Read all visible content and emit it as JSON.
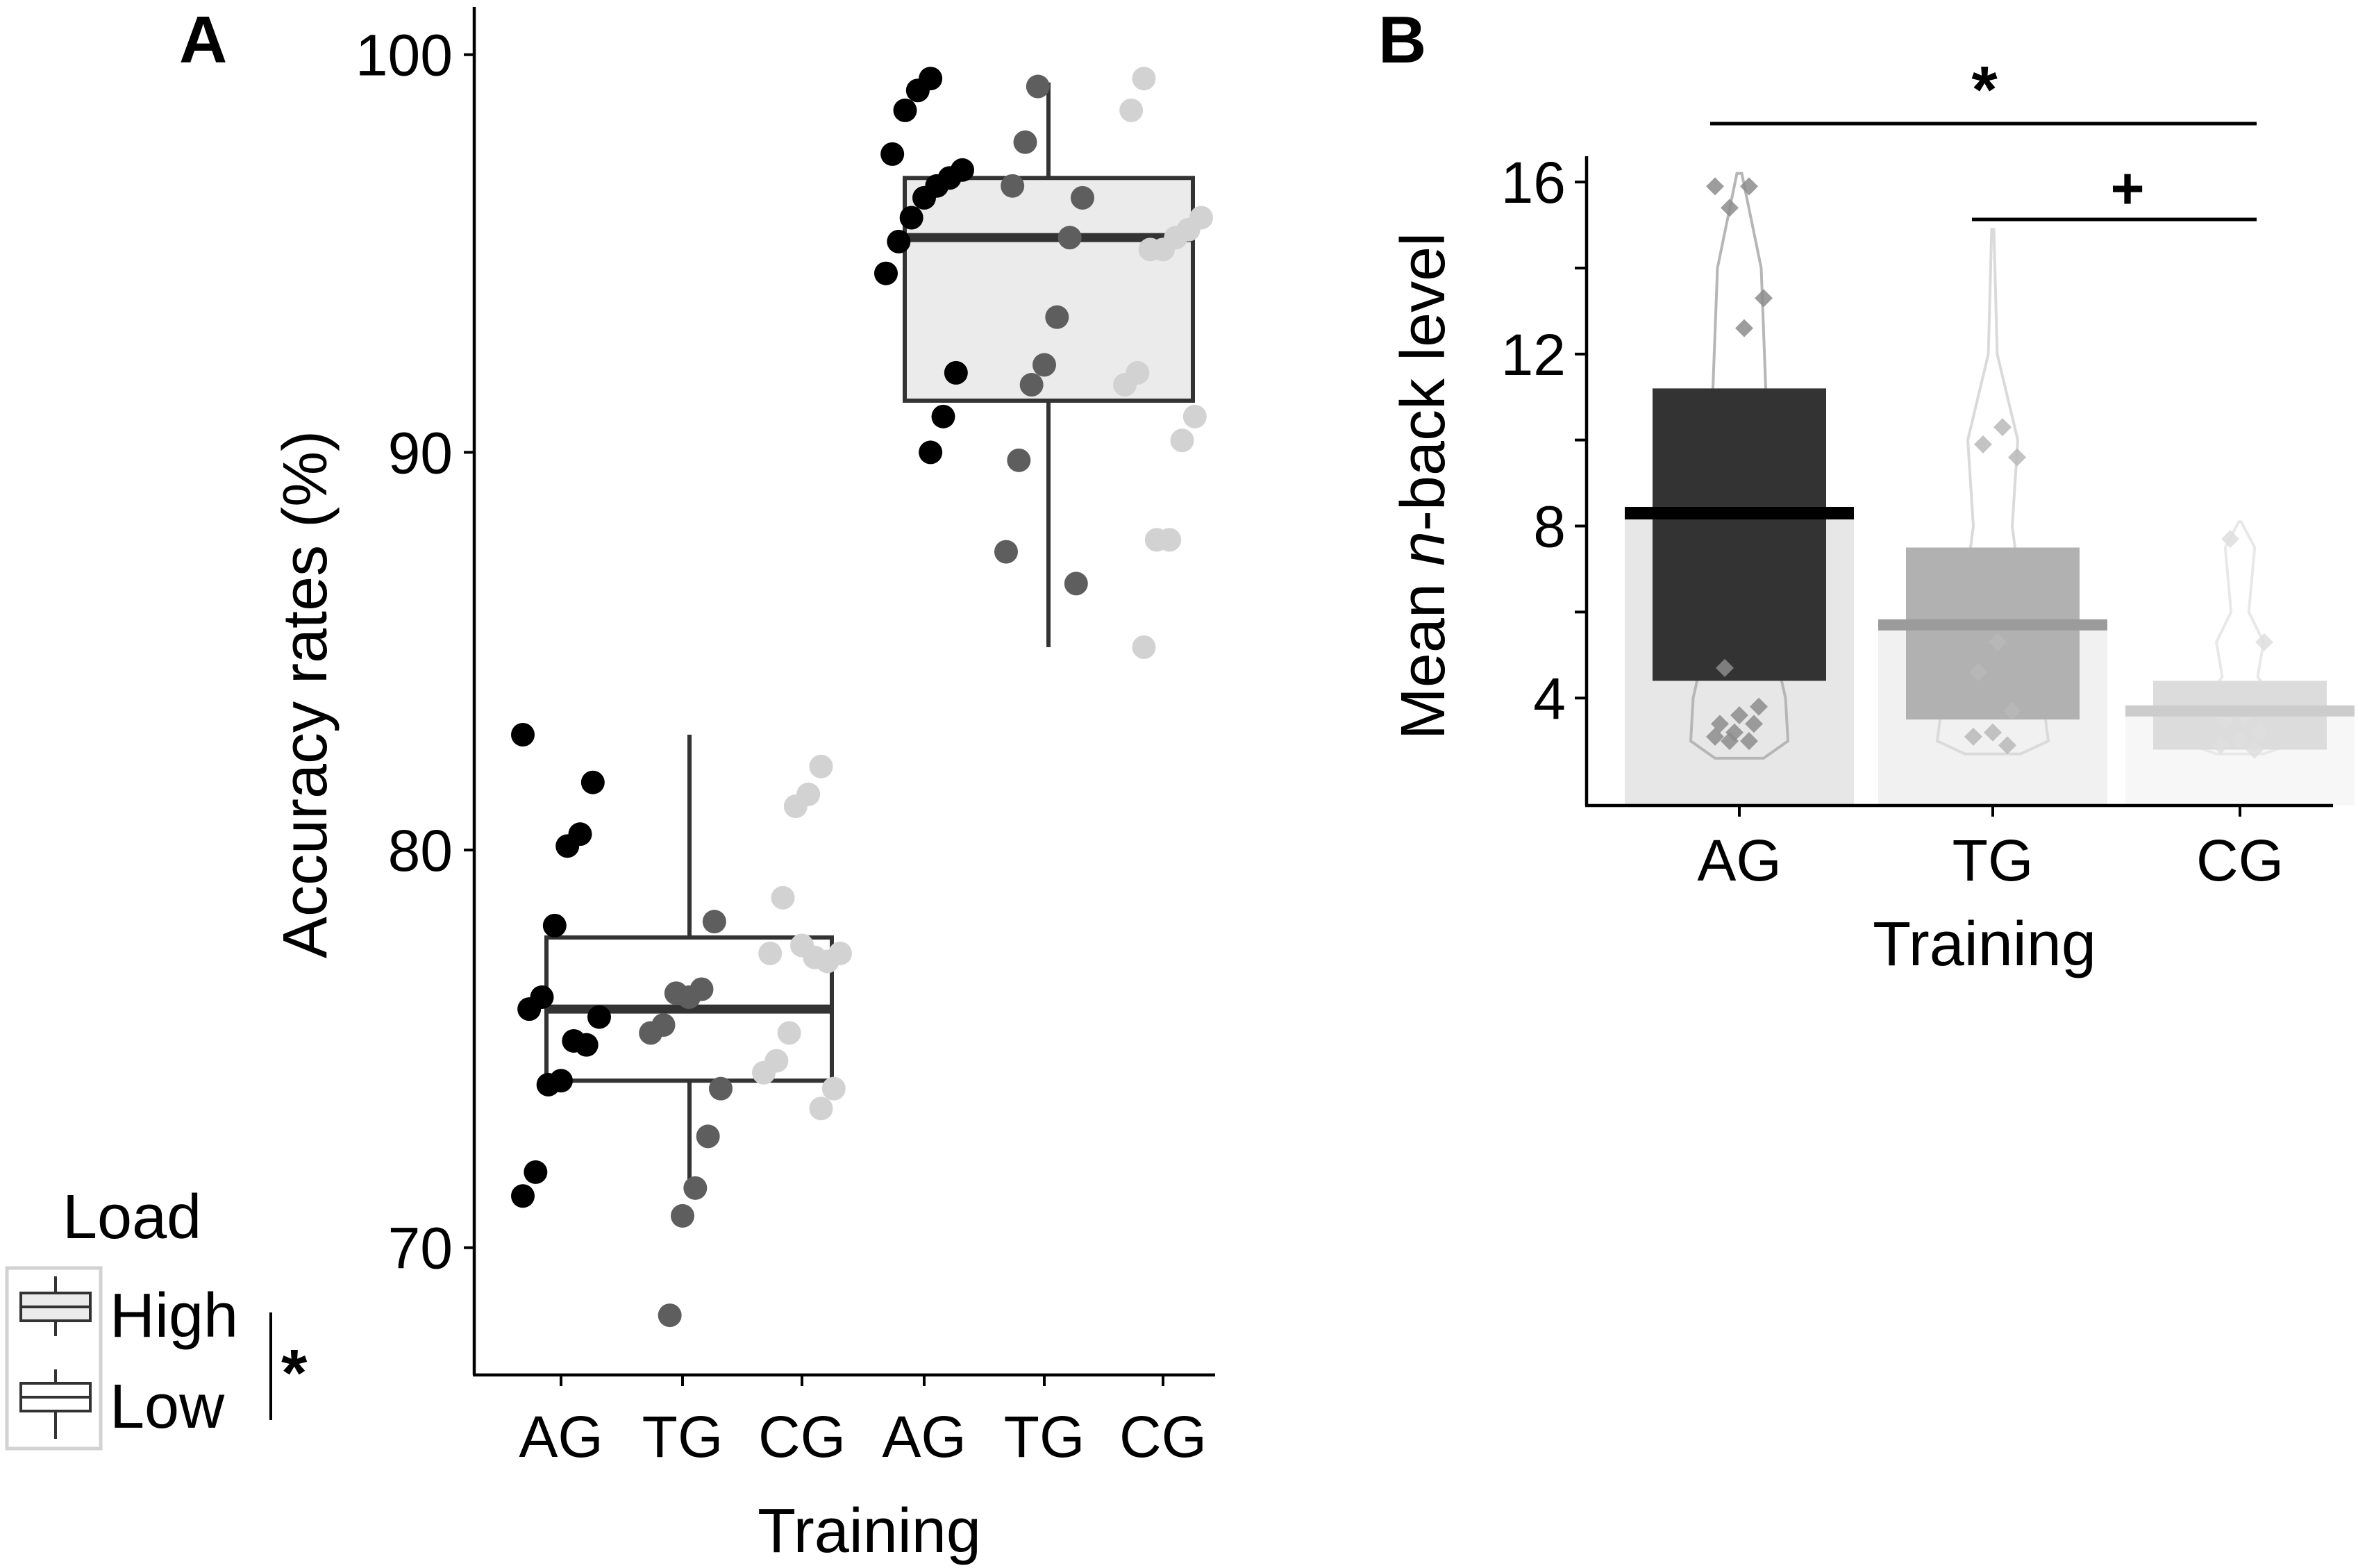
{
  "chart_data": [
    {
      "panel": "A",
      "type": "boxplot-with-points",
      "ylabel": "Accuracy rates (%)",
      "xlabel": "Training",
      "ylim": [
        66.8,
        101.2
      ],
      "yticks": [
        70,
        80,
        90,
        100
      ],
      "categories": [
        "AG",
        "TG",
        "CG",
        "AG",
        "TG",
        "CG"
      ],
      "legend": {
        "title": "Load",
        "entries": [
          "High",
          "Low"
        ],
        "sig": "*",
        "position": "bottom-left"
      },
      "colors": {
        "AG": "#000000",
        "TG": "#5e5e5e",
        "CG": "#d2d2d2",
        "box_high_fill": "#ebebeb",
        "box_line": "#333333"
      },
      "boxes": [
        {
          "load": "Low",
          "median": 76.0,
          "q1": 74.2,
          "q3": 77.8,
          "whisker_low": 71.4,
          "whisker_high": 82.9,
          "fill": "#ffffff"
        },
        {
          "load": "High",
          "median": 95.4,
          "q1": 91.3,
          "q3": 96.9,
          "whisker_low": 85.1,
          "whisker_high": 99.3,
          "fill": "#ebebeb"
        }
      ],
      "points": {
        "Low": {
          "AG": [
            82.9,
            81.7,
            80.4,
            80.1,
            78.1,
            76.3,
            76.0,
            75.8,
            75.1,
            75.2,
            74.2,
            74.1,
            71.9,
            71.3
          ],
          "TG": [
            78.2,
            76.5,
            76.3,
            76.4,
            75.6,
            75.4,
            74.0,
            72.8,
            71.5,
            70.8,
            68.3
          ],
          "CG": [
            82.1,
            81.4,
            81.1,
            78.8,
            77.4,
            77.4,
            77.2,
            77.3,
            77.6,
            75.4,
            74.7,
            74.4,
            74.0,
            73.5
          ]
        },
        "High": {
          "AG": [
            99.4,
            99.1,
            98.6,
            97.5,
            97.1,
            96.9,
            96.7,
            96.4,
            95.9,
            95.3,
            94.5,
            92.0,
            90.9,
            90.0
          ],
          "TG": [
            99.2,
            97.8,
            96.7,
            96.4,
            95.4,
            93.4,
            92.2,
            91.7,
            89.8,
            87.5,
            86.7
          ],
          "CG": [
            99.4,
            98.6,
            95.9,
            95.6,
            95.4,
            95.1,
            95.1,
            92.0,
            91.7,
            90.9,
            90.3,
            87.8,
            87.8,
            85.1
          ]
        }
      }
    },
    {
      "panel": "B",
      "type": "bar-with-violin",
      "ylabel_prefix": "Mean ",
      "ylabel_italic": "n",
      "ylabel_suffix": "-back level",
      "xlabel": "Training",
      "ylim": [
        1.5,
        16.6
      ],
      "yticks": [
        4,
        8,
        12,
        16
      ],
      "minor_yticks": [
        6,
        10,
        14
      ],
      "categories": [
        "AG",
        "TG",
        "CG"
      ],
      "means": [
        8.3,
        5.7,
        3.7
      ],
      "bar_low": [
        4.4,
        3.5,
        2.8
      ],
      "bar_high": [
        11.2,
        7.5,
        4.4
      ],
      "bar_colors": [
        "#333333",
        "#b1b1b1",
        "#dcdcdc"
      ],
      "mean_colors": [
        "#000000",
        "#9b9b9b",
        "#cccccc"
      ],
      "bg_colors": [
        "#e7e7e7",
        "#f1f1f1",
        "#f7f7f7"
      ],
      "violin_colors": [
        "#b6b6b6",
        "#dadada",
        "#e8e8e8"
      ],
      "point_colors": [
        "#8c8c8c",
        "#b8b8b8",
        "#dedede"
      ],
      "points": {
        "AG": [
          15.9,
          15.9,
          15.4,
          13.3,
          12.6,
          4.7,
          3.8,
          3.6,
          3.4,
          3.4,
          3.2,
          3.1,
          3.0,
          3.0
        ],
        "TG": [
          10.3,
          9.9,
          9.6,
          5.3,
          4.6,
          3.7,
          3.2,
          3.1,
          2.9
        ],
        "CG": [
          7.7,
          5.3,
          3.6,
          3.5,
          3.2,
          3.0,
          2.9,
          2.8
        ]
      },
      "significance": [
        {
          "from": "AG",
          "to": "CG",
          "label": "*"
        },
        {
          "from": "TG",
          "to": "CG",
          "label": "+"
        }
      ]
    }
  ]
}
